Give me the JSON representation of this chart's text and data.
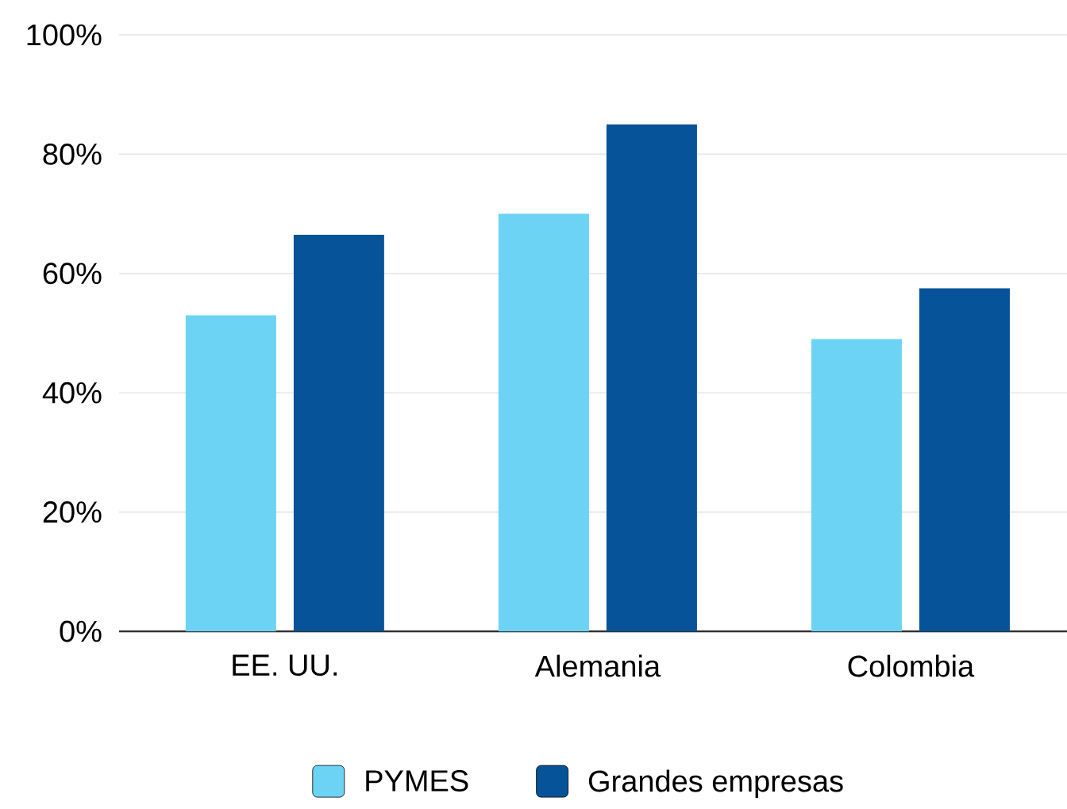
{
  "chart_data": {
    "type": "bar",
    "categories": [
      "EE. UU.",
      "Alemania",
      "Colombia"
    ],
    "series": [
      {
        "name": "PYMES",
        "color": "#6dd3f5",
        "values": [
          53,
          70,
          49
        ]
      },
      {
        "name": "Grandes empresas",
        "color": "#06539a",
        "values": [
          66.5,
          85,
          57.5
        ]
      }
    ],
    "ylim": [
      0,
      100
    ],
    "yticks": [
      {
        "value": 0,
        "label": "0%"
      },
      {
        "value": 20,
        "label": "20%"
      },
      {
        "value": 40,
        "label": "40%"
      },
      {
        "value": 60,
        "label": "60%"
      },
      {
        "value": 80,
        "label": "80%"
      },
      {
        "value": 100,
        "label": "100%"
      }
    ],
    "grid": "y",
    "legend": "bottom"
  }
}
